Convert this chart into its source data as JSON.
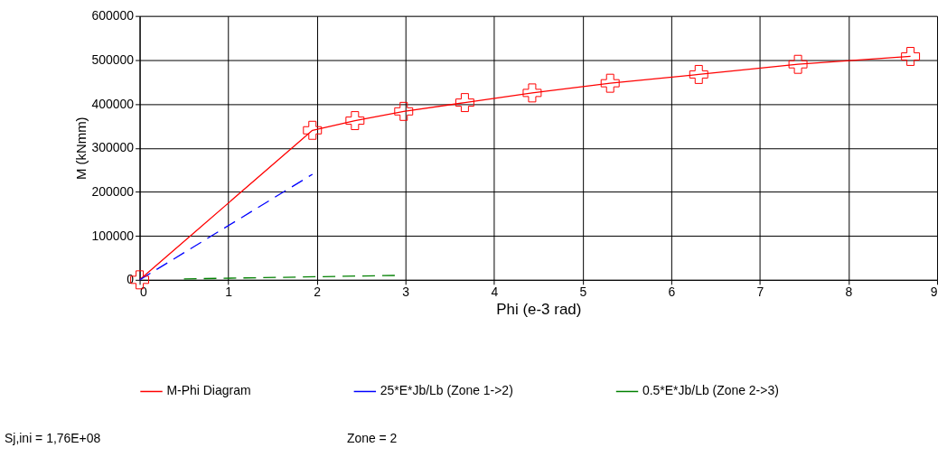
{
  "chart_data": {
    "type": "line",
    "xlabel": "Phi (e-3 rad)",
    "ylabel": "M (kNmm)",
    "xlim": [
      0,
      9
    ],
    "xticks": [
      0,
      1,
      2,
      3,
      4,
      5,
      6,
      7,
      8,
      9
    ],
    "ylim": [
      0,
      600000
    ],
    "yticks": [
      0,
      100000,
      200000,
      300000,
      400000,
      500000,
      600000
    ],
    "grid": true,
    "legend": "bottom",
    "series": [
      {
        "name": "M-Phi Diagram",
        "color": "#ff0000",
        "marker": "cross",
        "line_style": "solid",
        "x": [
          0,
          1.95,
          2.43,
          2.98,
          3.67,
          4.43,
          5.31,
          6.31,
          7.43,
          8.7
        ],
        "values": [
          0,
          340000,
          362000,
          383000,
          403000,
          425000,
          447000,
          467000,
          490000,
          508000
        ]
      },
      {
        "name": "25*E*Jb/Lb (Zone 1->2)",
        "color": "#0000ff",
        "marker": "none",
        "line_style": "dashed",
        "x": [
          0,
          1.95
        ],
        "values": [
          0,
          240000
        ]
      },
      {
        "name": "0.5*E*Jb/Lb (Zone 2->3)",
        "color": "#008000",
        "marker": "none",
        "line_style": "dashed",
        "x": [
          0.5,
          2.9
        ],
        "values": [
          2000,
          10000
        ]
      }
    ],
    "annotations": [
      "Sj,ini = 1,76E+08",
      "Zone = 2"
    ]
  }
}
